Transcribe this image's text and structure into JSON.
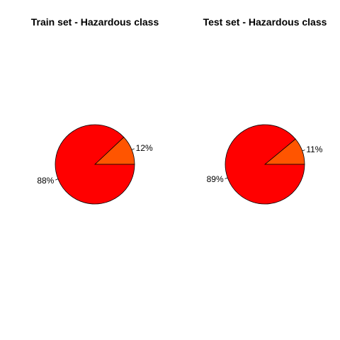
{
  "chart_data": [
    {
      "type": "pie",
      "title": "Train set - Hazardous class",
      "slices": [
        {
          "label": "12%",
          "value": 12,
          "color": "#ff5500"
        },
        {
          "label": "88%",
          "value": 88,
          "color": "#ff0000"
        }
      ]
    },
    {
      "type": "pie",
      "title": "Test set - Hazardous class",
      "slices": [
        {
          "label": "11%",
          "value": 11,
          "color": "#ff5500"
        },
        {
          "label": "89%",
          "value": 89,
          "color": "#ff0000"
        }
      ]
    }
  ]
}
